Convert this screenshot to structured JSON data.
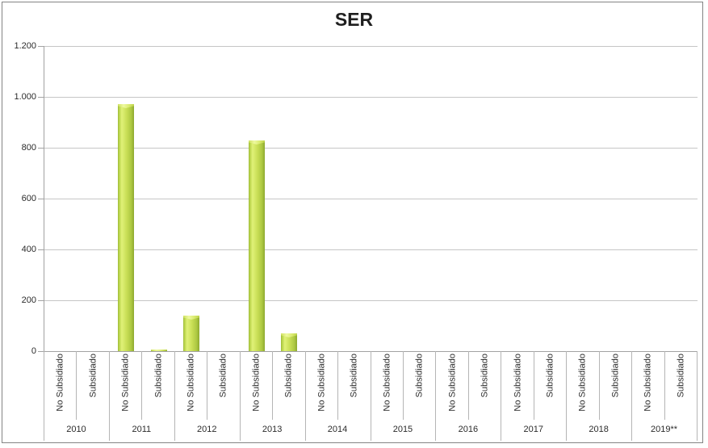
{
  "title": "SER",
  "chart_data": {
    "type": "bar",
    "title": "SER",
    "xlabel": "",
    "ylabel": "",
    "group_labels": [
      "2010",
      "2011",
      "2012",
      "2013",
      "2014",
      "2015",
      "2016",
      "2017",
      "2018",
      "2019**"
    ],
    "bar_labels": [
      "No Subsidiado",
      "Subsidiado"
    ],
    "values": [
      [
        0,
        0
      ],
      [
        970,
        5
      ],
      [
        140,
        0
      ],
      [
        830,
        70
      ],
      [
        0,
        0
      ],
      [
        0,
        0
      ],
      [
        0,
        0
      ],
      [
        0,
        0
      ],
      [
        0,
        0
      ],
      [
        0,
        0
      ]
    ],
    "y_tick_labels": [
      "1.200",
      "1.000",
      "800",
      "600",
      "400",
      "200",
      "0"
    ],
    "ylim": [
      0,
      1200
    ],
    "y_tick_step": 200,
    "grid": true,
    "legend_position": "none",
    "colors": {
      "bar_edge_left": "#9db93a",
      "bar_body_light": "#e0f178",
      "bar_body_mid": "#c8de55",
      "bar_edge_right": "#8ea930",
      "bar_cap_light": "#eef9a0",
      "gridline": "#c6c6c6",
      "axis_line": "#a2a2a2",
      "text": "#2b2b2b"
    }
  }
}
